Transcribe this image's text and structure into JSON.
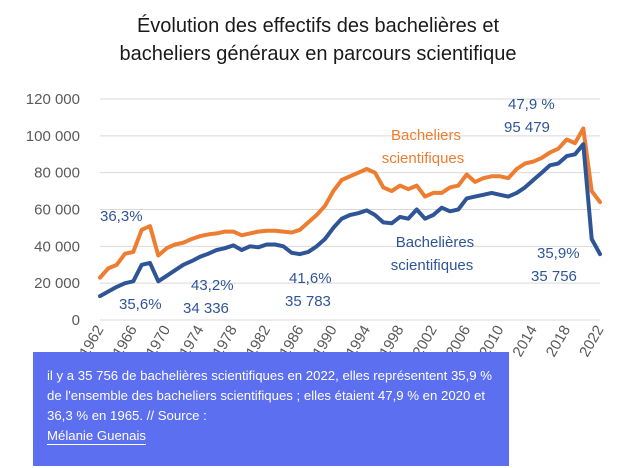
{
  "caption": {
    "text": "il y a 35 756 de bachelières scientifiques en 2022, elles représentent 35,9 % de l'ensemble des bacheliers scientifiques ; elles étaient 47,9 % en 2020 et 36,3 % en 1965. // Source :",
    "source_link": "Mélanie Guenais"
  },
  "colors": {
    "orange": "#ed7d31",
    "blue": "#2f5597",
    "grid": "#d9d9d9",
    "caption_bg": "#5b6ff0"
  },
  "chart_data": {
    "type": "line",
    "title_lines": [
      "Évolution des effectifs des bachelières et",
      "bacheliers généraux en parcours scientifique"
    ],
    "xlabel": "",
    "ylabel": "",
    "ylim": [
      0,
      120000
    ],
    "yticks": [
      0,
      20000,
      40000,
      60000,
      80000,
      100000,
      120000
    ],
    "ytick_labels": [
      "0",
      "20 000",
      "40 000",
      "60 000",
      "80 000",
      "100 000",
      "120 000"
    ],
    "xlim": [
      1962,
      2022
    ],
    "xticks": [
      1962,
      1966,
      1970,
      1974,
      1978,
      1982,
      1986,
      1990,
      1994,
      1998,
      2002,
      2006,
      2010,
      2014,
      2018,
      2022
    ],
    "xtick_labels": [
      "1962",
      "1966",
      "1970",
      "1974",
      "1978",
      "1982",
      "1986",
      "1990",
      "1994",
      "1998",
      "2002",
      "2006",
      "2010",
      "2014",
      "2018",
      "2022"
    ],
    "grid": true,
    "series": [
      {
        "name": "Bacheliers scientifiques",
        "color": "#ed7d31",
        "x": [
          1962,
          1963,
          1964,
          1965,
          1966,
          1967,
          1968,
          1969,
          1970,
          1971,
          1972,
          1973,
          1974,
          1975,
          1976,
          1977,
          1978,
          1979,
          1980,
          1981,
          1982,
          1983,
          1984,
          1985,
          1986,
          1987,
          1988,
          1989,
          1990,
          1991,
          1992,
          1993,
          1994,
          1995,
          1996,
          1997,
          1998,
          1999,
          2000,
          2001,
          2002,
          2003,
          2004,
          2005,
          2006,
          2007,
          2008,
          2009,
          2010,
          2011,
          2012,
          2013,
          2014,
          2015,
          2016,
          2017,
          2018,
          2019,
          2020,
          2021,
          2022
        ],
        "values": [
          23000,
          28000,
          30000,
          36000,
          37000,
          49000,
          51000,
          35000,
          39000,
          41000,
          42000,
          44000,
          45500,
          46500,
          47000,
          48000,
          48000,
          46000,
          47000,
          48000,
          48500,
          48500,
          48000,
          47500,
          49000,
          53000,
          57000,
          62000,
          70000,
          76000,
          78000,
          80000,
          82000,
          80000,
          72000,
          70000,
          73000,
          71000,
          73000,
          67000,
          69000,
          69000,
          72000,
          73000,
          79000,
          75000,
          77000,
          78000,
          78000,
          77000,
          82000,
          85000,
          86000,
          88000,
          91000,
          93000,
          98000,
          96000,
          104000,
          70000,
          64000
        ]
      },
      {
        "name": "Bachelières scientifiques",
        "color": "#2f5597",
        "x": [
          1962,
          1963,
          1964,
          1965,
          1966,
          1967,
          1968,
          1969,
          1970,
          1971,
          1972,
          1973,
          1974,
          1975,
          1976,
          1977,
          1978,
          1979,
          1980,
          1981,
          1982,
          1983,
          1984,
          1985,
          1986,
          1987,
          1988,
          1989,
          1990,
          1991,
          1992,
          1993,
          1994,
          1995,
          1996,
          1997,
          1998,
          1999,
          2000,
          2001,
          2002,
          2003,
          2004,
          2005,
          2006,
          2007,
          2008,
          2009,
          2010,
          2011,
          2012,
          2013,
          2014,
          2015,
          2016,
          2017,
          2018,
          2019,
          2020,
          2021,
          2022
        ],
        "values": [
          13000,
          15500,
          18000,
          20000,
          21000,
          30000,
          31000,
          21000,
          24000,
          27000,
          30000,
          32000,
          34336,
          36000,
          38000,
          39000,
          40500,
          38000,
          40000,
          39500,
          41000,
          41000,
          40000,
          36500,
          35783,
          37000,
          40000,
          44000,
          50000,
          55000,
          57000,
          58000,
          59500,
          57000,
          53000,
          52500,
          56000,
          55000,
          60000,
          55000,
          57000,
          61000,
          59000,
          60000,
          66000,
          67000,
          68000,
          69000,
          68000,
          67000,
          69000,
          72000,
          76000,
          80000,
          84000,
          85000,
          89000,
          90000,
          95479,
          44000,
          35756
        ]
      }
    ],
    "series_labels": [
      {
        "lines": [
          "Bacheliers",
          "scientifiques"
        ],
        "color": "#ed7d31"
      },
      {
        "lines": [
          "Bachelières",
          "scientifiques"
        ],
        "color": "#2f5597"
      }
    ],
    "annotations": [
      {
        "text": "36,3%",
        "color": "#2f5597"
      },
      {
        "text": "35,6%",
        "color": "#2f5597"
      },
      {
        "text": "43,2%",
        "color": "#2f5597"
      },
      {
        "text": "34 336",
        "color": "#2f5597"
      },
      {
        "text": "41,6%",
        "color": "#2f5597"
      },
      {
        "text": "35 783",
        "color": "#2f5597"
      },
      {
        "text": "47,9 %",
        "color": "#2f5597"
      },
      {
        "text": "95 479",
        "color": "#2f5597"
      },
      {
        "text": "35,9%",
        "color": "#2f5597"
      },
      {
        "text": "35 756",
        "color": "#2f5597"
      }
    ]
  }
}
